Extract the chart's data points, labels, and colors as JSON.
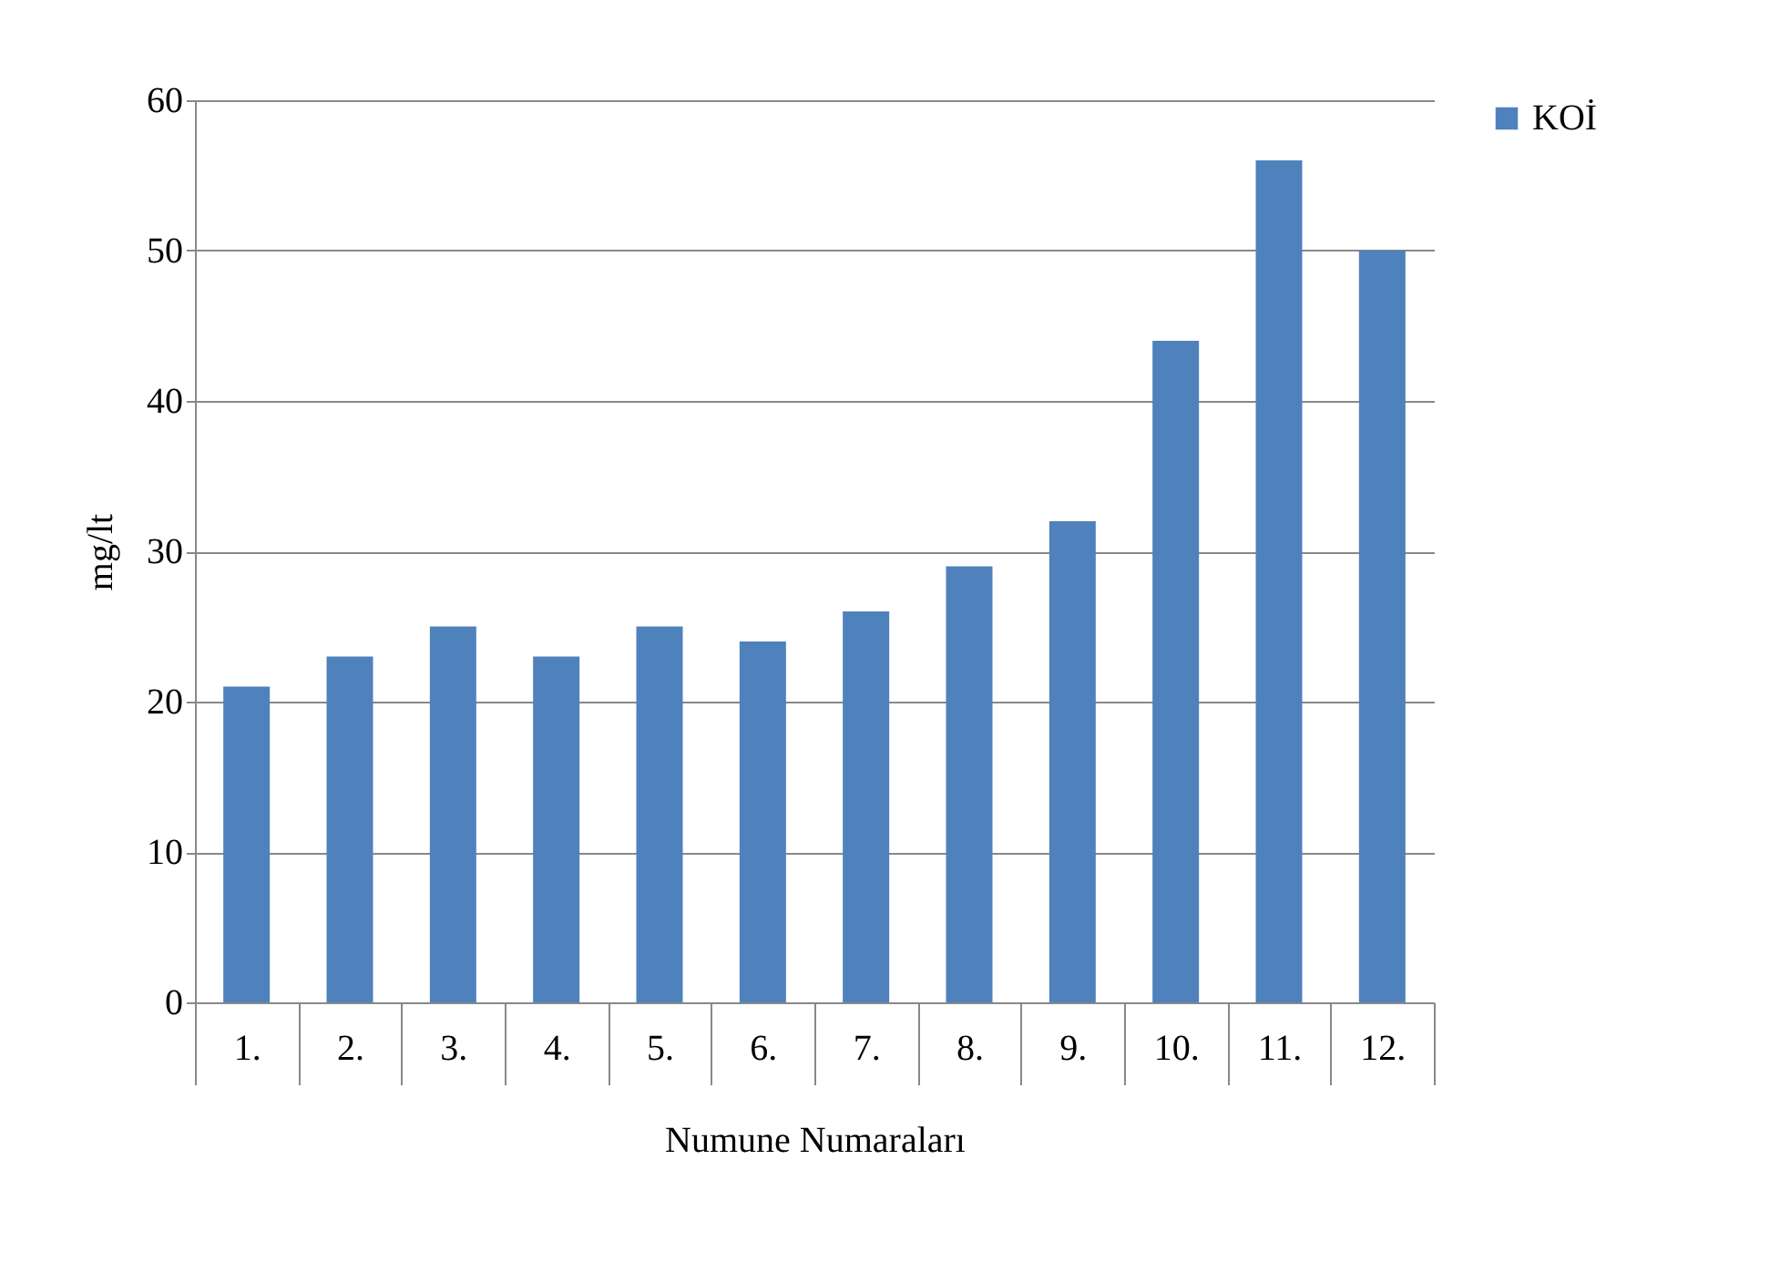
{
  "chart_data": {
    "type": "bar",
    "xlabel": "Numune Numaraları",
    "ylabel": "mg/lt",
    "categories": [
      "1.",
      "2.",
      "3.",
      "4.",
      "5.",
      "6.",
      "7.",
      "8.",
      "9.",
      "10.",
      "11.",
      "12."
    ],
    "series": [
      {
        "name": "KOİ",
        "color": "#4f81bd",
        "values": [
          21,
          23,
          25,
          23,
          25,
          24,
          26,
          29,
          32,
          44,
          56,
          50
        ]
      }
    ],
    "ylim": [
      0,
      60
    ],
    "yticks": [
      0,
      10,
      20,
      30,
      40,
      50,
      60
    ],
    "grid": "y",
    "legend": "right"
  }
}
